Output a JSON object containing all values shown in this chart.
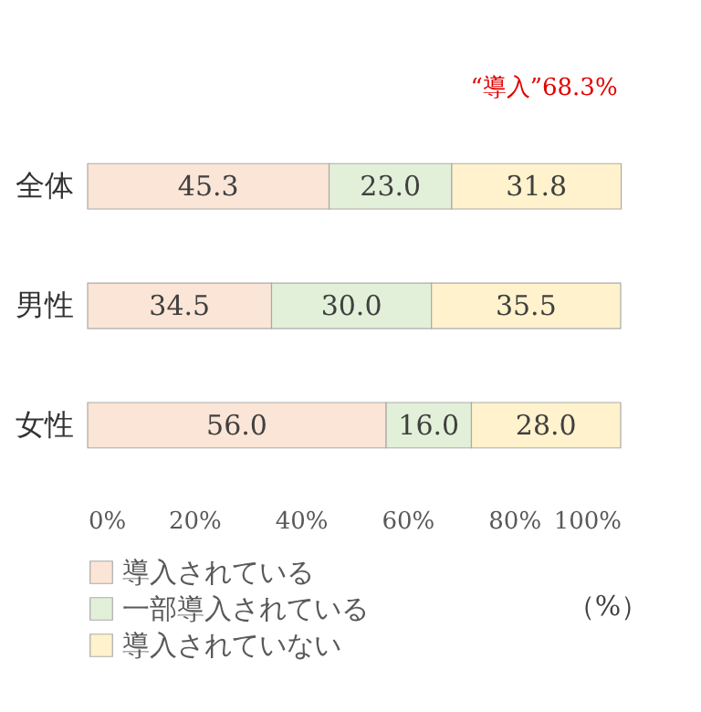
{
  "chart_data": {
    "type": "bar",
    "orientation": "horizontal",
    "stacked": true,
    "legend": "bottom left",
    "grid": false,
    "categories": [
      "全体",
      "男性",
      "女性"
    ],
    "series": [
      {
        "name": "導入されている",
        "color": "#fbe5d6",
        "values": [
          45.3,
          34.5,
          56.0
        ],
        "value_labels": [
          "45.3",
          "34.5",
          "56.0"
        ]
      },
      {
        "name": "一部導入されている",
        "color": "#e2f0d9",
        "values": [
          23.0,
          30.0,
          16.0
        ],
        "value_labels": [
          "23.0",
          "30.0",
          "16.0"
        ]
      },
      {
        "name": "導入されていない",
        "color": "#fff2cc",
        "values": [
          31.8,
          35.5,
          28.0
        ],
        "value_labels": [
          "31.8",
          "35.5",
          "28.0"
        ]
      }
    ],
    "xlim": [
      0,
      100
    ],
    "xticks": [
      {
        "value": 0,
        "label": "0%"
      },
      {
        "value": 20,
        "label": "20%"
      },
      {
        "value": 40,
        "label": "40%"
      },
      {
        "value": 60,
        "label": "60%"
      },
      {
        "value": 80,
        "label": "80%"
      },
      {
        "value": 100,
        "label": "100%"
      }
    ],
    "annotations": [
      "“導入”68.3%",
      "（%）"
    ]
  }
}
